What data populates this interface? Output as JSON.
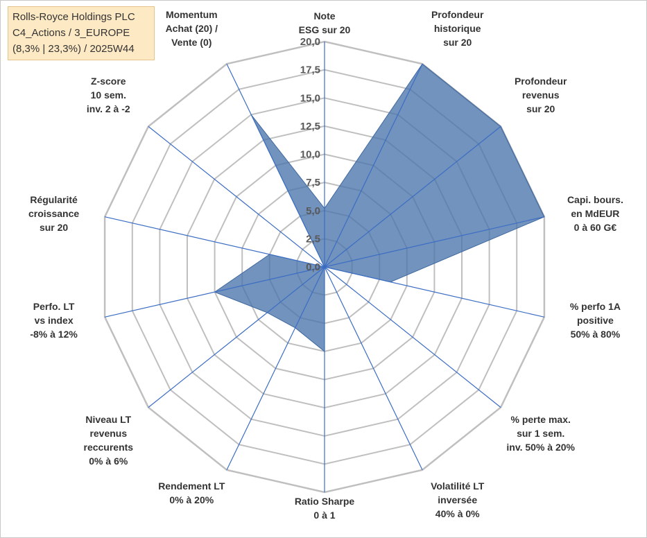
{
  "info_box": {
    "line1": "Rolls-Royce Holdings PLC",
    "line2": "C4_Actions / 3_EUROPE",
    "line3": "(8,3% | 23,3%) / 2025W44"
  },
  "chart_data": {
    "type": "radar",
    "title": "",
    "scale": {
      "min": 0,
      "max": 20,
      "step": 2.5
    },
    "tick_labels": [
      "0,0",
      "2,5",
      "5,0",
      "7,5",
      "10,0",
      "12,5",
      "15,0",
      "17,5",
      "20,0"
    ],
    "axes": [
      [
        "Note",
        "ESG sur 20"
      ],
      [
        "Profondeur",
        "historique",
        "sur 20"
      ],
      [
        "Profondeur",
        "revenus",
        "sur 20"
      ],
      [
        "Capi. bours.",
        "en MdEUR",
        "0 à 60 G€"
      ],
      [
        "% perfo 1A",
        "positive",
        "50% à 80%"
      ],
      [
        "% perte max.",
        "sur 1 sem.",
        "inv. 50% à 20%"
      ],
      [
        "Volatilité LT",
        "inversée",
        "40% à 0%"
      ],
      [
        "Ratio Sharpe",
        "0 à 1"
      ],
      [
        "Rendement LT",
        "0% à 20%"
      ],
      [
        "Niveau LT",
        "revenus",
        "reccurents",
        "0% à 6%"
      ],
      [
        "Perfo. LT",
        "vs index",
        "-8% à 12%"
      ],
      [
        "Régularité",
        "croissance",
        "sur 20"
      ],
      [
        "Z-score",
        "10 sem.",
        "inv. 2 à -2"
      ],
      [
        "Momentum",
        "Achat (20) /",
        "Vente (0)"
      ]
    ],
    "series": [
      {
        "values": [
          5.2,
          20.0,
          20.0,
          20.0,
          6.0,
          0.0,
          0.0,
          7.5,
          6.0,
          6.5,
          10.0,
          5.0,
          0.0,
          15.0
        ]
      }
    ],
    "colors": {
      "fill": "#4a74aa",
      "stroke": "#3e68a0",
      "spoke": "#3b6dc4",
      "grid": "#bfbfbf",
      "info_bg": "#fde9c4"
    },
    "grid": true
  }
}
